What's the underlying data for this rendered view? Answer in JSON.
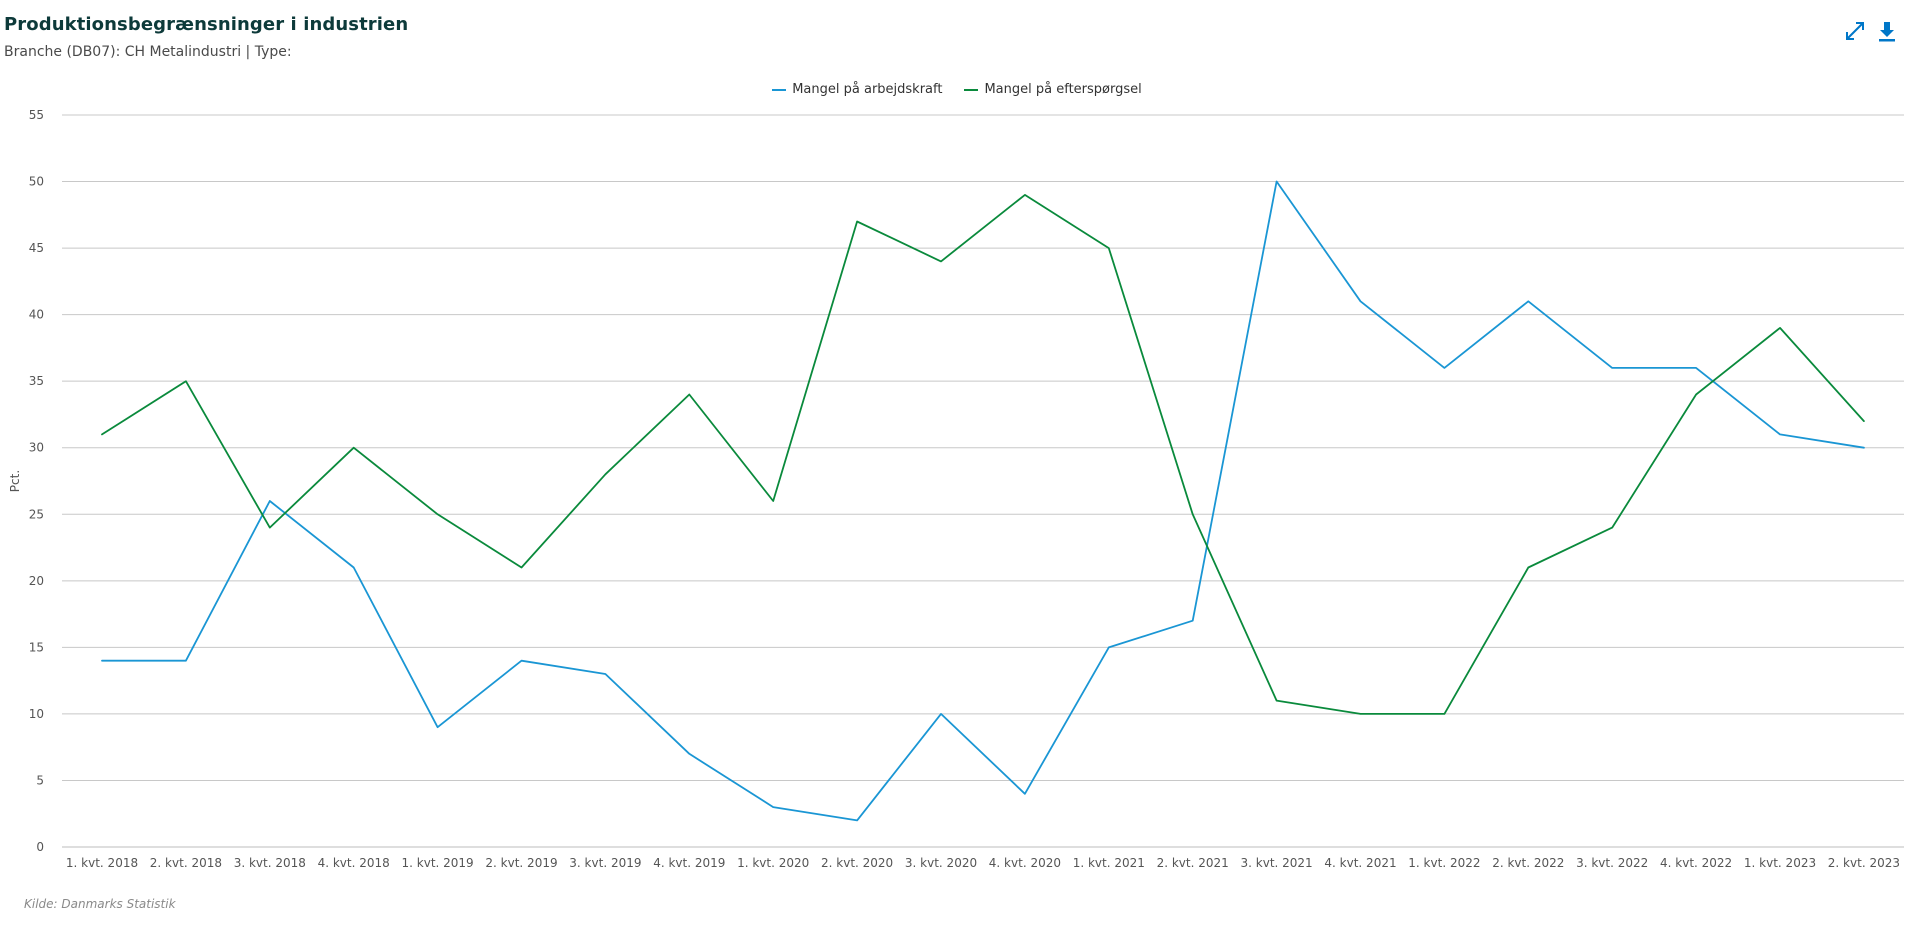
{
  "header": {
    "title": "Produktionsbegrænsninger i industrien",
    "subtitle": "Branche (DB07): CH Metalindustri | Type:"
  },
  "toolbar": {
    "expand_icon": "expand-icon",
    "download_icon": "download-icon"
  },
  "footer": {
    "source": "Kilde: Danmarks Statistik"
  },
  "colors": {
    "series1": "#1a96d4",
    "series2": "#0a8a3c",
    "grid": "#c8c8c8",
    "accent": "#0077c8"
  },
  "chart_data": {
    "type": "line",
    "title": "Produktionsbegrænsninger i industrien",
    "xlabel": "",
    "ylabel": "Pct.",
    "ylim": [
      0,
      55
    ],
    "yticks": [
      0,
      5,
      10,
      15,
      20,
      25,
      30,
      35,
      40,
      45,
      50,
      55
    ],
    "grid": true,
    "legend_position": "top-center",
    "categories": [
      "1. kvt. 2018",
      "2. kvt. 2018",
      "3. kvt. 2018",
      "4. kvt. 2018",
      "1. kvt. 2019",
      "2. kvt. 2019",
      "3. kvt. 2019",
      "4. kvt. 2019",
      "1. kvt. 2020",
      "2. kvt. 2020",
      "3. kvt. 2020",
      "4. kvt. 2020",
      "1. kvt. 2021",
      "2. kvt. 2021",
      "3. kvt. 2021",
      "4. kvt. 2021",
      "1. kvt. 2022",
      "2. kvt. 2022",
      "3. kvt. 2022",
      "4. kvt. 2022",
      "1. kvt. 2023",
      "2. kvt. 2023"
    ],
    "series": [
      {
        "name": "Mangel på arbejdskraft",
        "color": "#1a96d4",
        "values": [
          14,
          14,
          26,
          21,
          9,
          14,
          13,
          7,
          3,
          2,
          10,
          4,
          15,
          17,
          50,
          41,
          36,
          41,
          36,
          36,
          31,
          30
        ]
      },
      {
        "name": "Mangel på efterspørgsel",
        "color": "#0a8a3c",
        "values": [
          31,
          35,
          24,
          30,
          25,
          21,
          28,
          34,
          26,
          47,
          44,
          49,
          45,
          25,
          11,
          10,
          10,
          21,
          24,
          34,
          39,
          32
        ]
      }
    ]
  }
}
